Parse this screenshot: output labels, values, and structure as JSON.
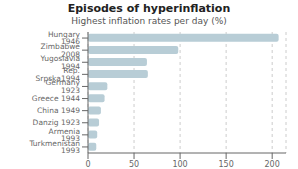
{
  "chart_data": {
    "type": "bar",
    "title": "Episodes of hyperinflation",
    "subtitle": "Highest inflation rates per day (%)",
    "orientation": "horizontal",
    "categories": [
      "Hungary 1946",
      "Zimbabwe 2008",
      "Yugoslavia 1994",
      "Rep. Srpska1994",
      "Germany 1923",
      "Greece 1944",
      "China 1949",
      "Danzig 1923",
      "Armenia 1993",
      "Turkmenistan 1993"
    ],
    "values": [
      207,
      98,
      64,
      65,
      21,
      18,
      14,
      12,
      10,
      9
    ],
    "color": "#b8cdd6",
    "xlim": [
      0,
      215
    ],
    "xticks": [
      0,
      50,
      100,
      150,
      200
    ],
    "grid": true
  }
}
